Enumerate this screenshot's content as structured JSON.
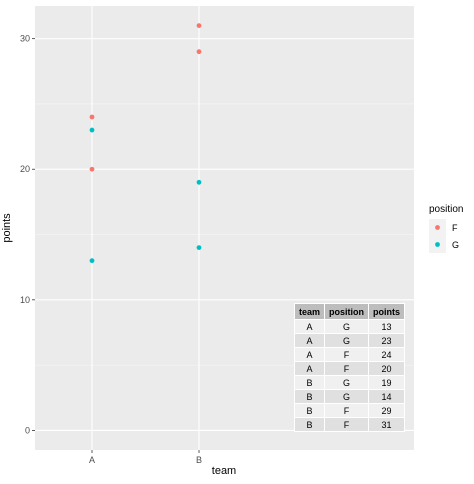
{
  "chart_data": {
    "type": "scatter",
    "xlabel": "team",
    "ylabel": "points",
    "categories": [
      "A",
      "B"
    ],
    "ylim": [
      -1.5,
      32.5
    ],
    "y_ticks": [
      0,
      10,
      20,
      30
    ],
    "grid": true,
    "legend": {
      "title": "position",
      "placement": "right",
      "entries": [
        {
          "label": "F",
          "color": "#F8766D"
        },
        {
          "label": "G",
          "color": "#00BFC4"
        }
      ]
    },
    "series": [
      {
        "name": "F",
        "color": "#F8766D",
        "points": [
          {
            "x": "A",
            "y": 24
          },
          {
            "x": "A",
            "y": 20
          },
          {
            "x": "B",
            "y": 29
          },
          {
            "x": "B",
            "y": 31
          }
        ]
      },
      {
        "name": "G",
        "color": "#00BFC4",
        "points": [
          {
            "x": "A",
            "y": 13
          },
          {
            "x": "A",
            "y": 23
          },
          {
            "x": "B",
            "y": 19
          },
          {
            "x": "B",
            "y": 14
          }
        ]
      }
    ]
  },
  "table": {
    "headers": [
      "team",
      "position",
      "points"
    ],
    "rows": [
      [
        "A",
        "G",
        "13"
      ],
      [
        "A",
        "G",
        "23"
      ],
      [
        "A",
        "F",
        "24"
      ],
      [
        "A",
        "F",
        "20"
      ],
      [
        "B",
        "G",
        "19"
      ],
      [
        "B",
        "G",
        "14"
      ],
      [
        "B",
        "F",
        "29"
      ],
      [
        "B",
        "F",
        "31"
      ]
    ]
  },
  "colors": {
    "panel_background": "#EBEBEB",
    "grid_major": "#FFFFFF",
    "axis_text": "#4D4D4D"
  }
}
